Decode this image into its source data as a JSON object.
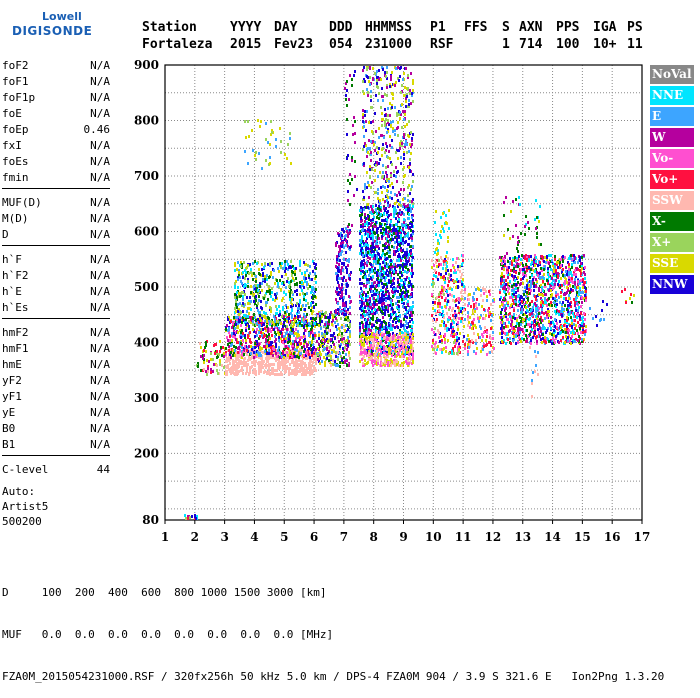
{
  "logo": {
    "line1": "Lowell",
    "line2": "DIGISONDE"
  },
  "header": {
    "labels": [
      "Station",
      "YYYY",
      "DAY",
      "DDD",
      "HHMMSS",
      "P1",
      "FFS",
      "S",
      "AXN",
      "PPS",
      "IGA",
      "PS"
    ],
    "values": [
      "Fortaleza",
      "2015",
      "Fev23",
      "054",
      "231000",
      "RSF",
      "",
      "1",
      "714",
      "100",
      "10+",
      "11"
    ]
  },
  "params": [
    [
      {
        "name": "foF2",
        "value": "N/A"
      },
      {
        "name": "foF1",
        "value": "N/A"
      },
      {
        "name": "foF1p",
        "value": "N/A"
      },
      {
        "name": "foE",
        "value": "N/A"
      },
      {
        "name": "foEp",
        "value": "0.46"
      },
      {
        "name": "fxI",
        "value": "N/A"
      },
      {
        "name": "foEs",
        "value": "N/A"
      },
      {
        "name": "fmin",
        "value": "N/A"
      }
    ],
    [
      {
        "name": "MUF(D)",
        "value": "N/A"
      },
      {
        "name": "M(D)",
        "value": "N/A"
      },
      {
        "name": "D",
        "value": "N/A"
      }
    ],
    [
      {
        "name": "h`F",
        "value": "N/A"
      },
      {
        "name": "h`F2",
        "value": "N/A"
      },
      {
        "name": "h`E",
        "value": "N/A"
      },
      {
        "name": "h`Es",
        "value": "N/A"
      }
    ],
    [
      {
        "name": "hmF2",
        "value": "N/A"
      },
      {
        "name": "hmF1",
        "value": "N/A"
      },
      {
        "name": "hmE",
        "value": "N/A"
      },
      {
        "name": "yF2",
        "value": "N/A"
      },
      {
        "name": "yF1",
        "value": "N/A"
      },
      {
        "name": "yE",
        "value": "N/A"
      },
      {
        "name": "B0",
        "value": "N/A"
      },
      {
        "name": "B1",
        "value": "N/A"
      }
    ],
    [
      {
        "name": "C-level",
        "value": "44"
      }
    ]
  ],
  "auto": {
    "line1": "Auto:",
    "line2": "Artist5",
    "line3": "500200"
  },
  "footer": {
    "d_line": "D     100  200  400  600  800 1000 1500 3000 [km]",
    "muf_line": "MUF   0.0  0.0  0.0  0.0  0.0  0.0  0.0  0.0 [MHz]",
    "file_line": "FZA0M_2015054231000.RSF / 320fx256h 50 kHz 5.0 km / DPS-4 FZA0M 904 / 3.9 S 321.6 E   Ion2Png 1.3.20"
  },
  "legend": [
    {
      "label": "NoVal",
      "color": "#888888"
    },
    {
      "label": "NNE",
      "color": "#00e5ff"
    },
    {
      "label": "E",
      "color": "#3da5ff"
    },
    {
      "label": "W",
      "color": "#b5009e"
    },
    {
      "label": "Vo-",
      "color": "#ff4fd0"
    },
    {
      "label": "Vo+",
      "color": "#ff1040"
    },
    {
      "label": "SSW",
      "color": "#ffb8b0"
    },
    {
      "label": "X-",
      "color": "#007a00"
    },
    {
      "label": "X+",
      "color": "#9ad45c"
    },
    {
      "label": "SSE",
      "color": "#d9d900"
    },
    {
      "label": "NNW",
      "color": "#1800d8"
    }
  ],
  "chart_data": {
    "type": "scatter",
    "xlim": [
      1,
      17
    ],
    "ylim": [
      80,
      900
    ],
    "xticks": [
      1,
      2,
      3,
      4,
      5,
      6,
      7,
      8,
      9,
      10,
      11,
      12,
      13,
      14,
      15,
      16,
      17
    ],
    "yticks": [
      80,
      200,
      300,
      400,
      500,
      600,
      700,
      800,
      900
    ],
    "grid": true,
    "legend_position": "right",
    "clusters": [
      {
        "x": [
          1.55,
          2.05
        ],
        "y": [
          80,
          92
        ],
        "n": 25,
        "colors": [
          "#1800d8",
          "#b5009e",
          "#ff1040",
          "#00e5ff",
          "#9ad45c"
        ]
      },
      {
        "x": [
          2.05,
          3.0
        ],
        "y": [
          345,
          405
        ],
        "n": 70,
        "colors": [
          "#ffb8b0",
          "#ff1040",
          "#d9d900",
          "#9ad45c",
          "#007a00",
          "#b5009e"
        ]
      },
      {
        "x": [
          3.0,
          6.05
        ],
        "y": [
          345,
          390
        ],
        "n": 550,
        "colors": [
          "#ffb8b0"
        ]
      },
      {
        "x": [
          3.0,
          6.05
        ],
        "y": [
          375,
          450
        ],
        "n": 650,
        "colors": [
          "#d9d900",
          "#b5009e",
          "#ff4fd0",
          "#ff1040",
          "#007a00",
          "#1800d8",
          "#3da5ff"
        ]
      },
      {
        "x": [
          3.3,
          6.05
        ],
        "y": [
          430,
          550
        ],
        "n": 550,
        "colors": [
          "#3da5ff",
          "#00e5ff",
          "#9ad45c",
          "#d9d900",
          "#1800d8",
          "#007a00"
        ]
      },
      {
        "x": [
          3.6,
          5.2
        ],
        "y": [
          715,
          805
        ],
        "n": 40,
        "colors": [
          "#d9d900",
          "#9ad45c",
          "#3da5ff"
        ]
      },
      {
        "x": [
          6.05,
          7.2
        ],
        "y": [
          360,
          460
        ],
        "n": 320,
        "colors": [
          "#3da5ff",
          "#b5009e",
          "#d9d900",
          "#ffb8b0",
          "#007a00",
          "#1800d8",
          "#9ad45c"
        ]
      },
      {
        "x": [
          6.7,
          7.2
        ],
        "y": [
          450,
          610
        ],
        "n": 200,
        "colors": [
          "#1800d8",
          "#b5009e",
          "#3da5ff"
        ]
      },
      {
        "x": [
          7.0,
          7.4
        ],
        "y": [
          610,
          900
        ],
        "n": 40,
        "colors": [
          "#1800d8",
          "#b5009e",
          "#007a00"
        ]
      },
      {
        "x": [
          7.5,
          9.3
        ],
        "y": [
          380,
          650
        ],
        "n": 1500,
        "colors": [
          "#1800d8",
          "#1800d8",
          "#3da5ff",
          "#b5009e",
          "#00e5ff",
          "#007a00"
        ]
      },
      {
        "x": [
          7.6,
          9.3
        ],
        "y": [
          650,
          900
        ],
        "n": 450,
        "colors": [
          "#1800d8",
          "#b5009e",
          "#3da5ff",
          "#9ad45c",
          "#d9d900"
        ]
      },
      {
        "x": [
          7.5,
          9.3
        ],
        "y": [
          360,
          420
        ],
        "n": 380,
        "colors": [
          "#ffb8b0",
          "#ff4fd0",
          "#d9d900"
        ]
      },
      {
        "x": [
          9.9,
          11.0
        ],
        "y": [
          380,
          560
        ],
        "n": 350,
        "colors": [
          "#d9d900",
          "#00e5ff",
          "#ff1040",
          "#1800d8",
          "#ffb8b0",
          "#9ad45c",
          "#ff4fd0"
        ]
      },
      {
        "x": [
          10.0,
          10.5
        ],
        "y": [
          560,
          640
        ],
        "n": 30,
        "colors": [
          "#00e5ff",
          "#d9d900"
        ]
      },
      {
        "x": [
          11.0,
          12.0
        ],
        "y": [
          380,
          500
        ],
        "n": 160,
        "colors": [
          "#d9d900",
          "#ffb8b0",
          "#ff4fd0",
          "#3da5ff",
          "#ff1040"
        ]
      },
      {
        "x": [
          12.2,
          15.1
        ],
        "y": [
          400,
          560
        ],
        "n": 1300,
        "colors": [
          "#1800d8",
          "#3da5ff",
          "#00e5ff",
          "#b5009e",
          "#ff4fd0",
          "#d9d900",
          "#007a00",
          "#ff1040"
        ]
      },
      {
        "x": [
          12.3,
          13.6
        ],
        "y": [
          560,
          665
        ],
        "n": 40,
        "colors": [
          "#007a00",
          "#d9d900",
          "#00e5ff",
          "#b5009e"
        ]
      },
      {
        "x": [
          13.2,
          13.5
        ],
        "y": [
          300,
          400
        ],
        "n": 12,
        "colors": [
          "#ffb8b0",
          "#3da5ff"
        ]
      },
      {
        "x": [
          15.2,
          15.9
        ],
        "y": [
          430,
          480
        ],
        "n": 10,
        "colors": [
          "#1800d8",
          "#3da5ff"
        ]
      },
      {
        "x": [
          16.3,
          16.7
        ],
        "y": [
          470,
          500
        ],
        "n": 8,
        "colors": [
          "#d9d900",
          "#ff1040",
          "#007a00"
        ]
      }
    ]
  }
}
